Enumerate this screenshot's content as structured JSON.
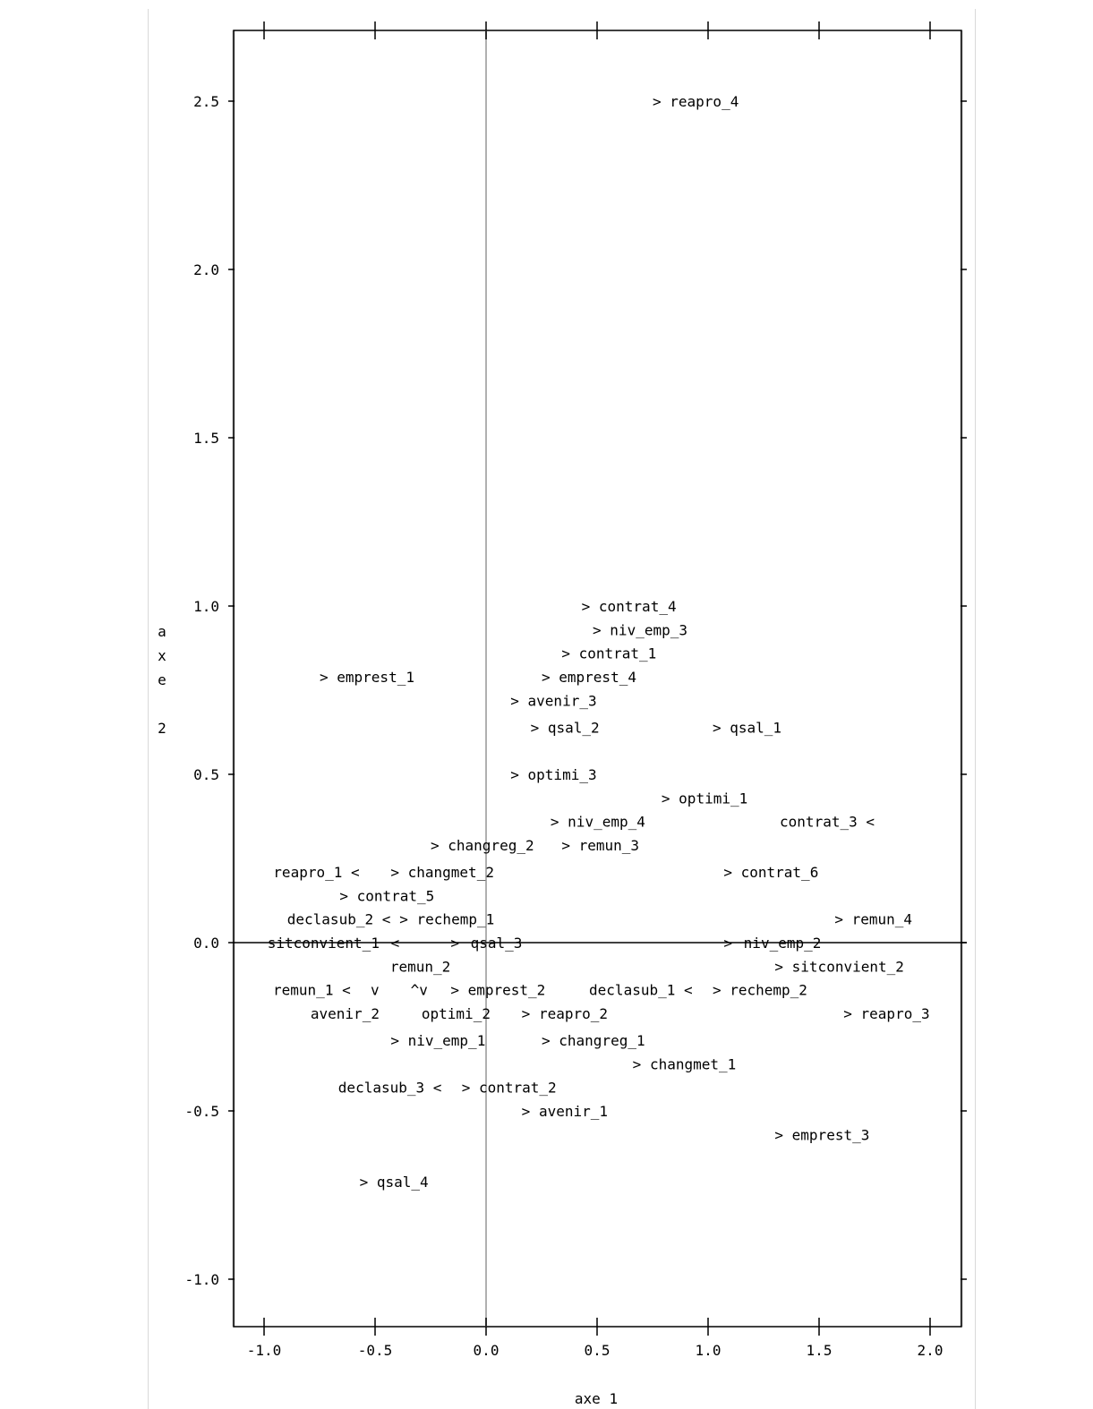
{
  "chart_data": {
    "type": "scatter",
    "xlabel": "axe 1",
    "ylabel": "axe 2",
    "xlim": [
      -1.14,
      2.14
    ],
    "ylim": [
      -1.15,
      2.73
    ],
    "x_ticks": [
      "-1.0",
      "-0.5",
      "0.0",
      "0.5",
      "1.0",
      "1.5",
      "2.0"
    ],
    "y_ticks": [
      "-1.0",
      "-0.5",
      "0.0",
      "0.5",
      "1.0",
      "1.5",
      "2.0",
      "2.5"
    ],
    "grid": false,
    "points": [
      {
        "label": "> reapro_4",
        "x": 0.75,
        "y": 2.5,
        "anchor": "start"
      },
      {
        "label": "> contrat_4",
        "x": 0.43,
        "y": 1.0,
        "anchor": "start"
      },
      {
        "label": "> niv_emp_3",
        "x": 0.48,
        "y": 0.93,
        "anchor": "start"
      },
      {
        "label": "> contrat_1",
        "x": 0.34,
        "y": 0.86,
        "anchor": "start"
      },
      {
        "label": "> emprest_1",
        "x": -0.75,
        "y": 0.79,
        "anchor": "start"
      },
      {
        "label": "> emprest_4",
        "x": 0.25,
        "y": 0.79,
        "anchor": "start"
      },
      {
        "label": "> avenir_3",
        "x": 0.11,
        "y": 0.72,
        "anchor": "start"
      },
      {
        "label": "> qsal_2",
        "x": 0.2,
        "y": 0.64,
        "anchor": "start"
      },
      {
        "label": "> qsal_1",
        "x": 1.02,
        "y": 0.64,
        "anchor": "start"
      },
      {
        "label": "> optimi_3",
        "x": 0.11,
        "y": 0.5,
        "anchor": "start"
      },
      {
        "label": "> optimi_1",
        "x": 0.79,
        "y": 0.43,
        "anchor": "start"
      },
      {
        "label": "> niv_emp_4",
        "x": 0.29,
        "y": 0.36,
        "anchor": "start"
      },
      {
        "label": "contrat_3 <",
        "x": 1.75,
        "y": 0.36,
        "anchor": "end"
      },
      {
        "label": "> changreg_2",
        "x": -0.25,
        "y": 0.29,
        "anchor": "start"
      },
      {
        "label": "> remun_3",
        "x": 0.34,
        "y": 0.29,
        "anchor": "start"
      },
      {
        "label": "reapro_1 <",
        "x": -0.57,
        "y": 0.21,
        "anchor": "end"
      },
      {
        "label": "> changmet_2",
        "x": -0.43,
        "y": 0.21,
        "anchor": "start"
      },
      {
        "label": "> contrat_6",
        "x": 1.07,
        "y": 0.21,
        "anchor": "start"
      },
      {
        "label": "> contrat_5",
        "x": -0.66,
        "y": 0.14,
        "anchor": "start"
      },
      {
        "label": "declasub_2 <",
        "x": -0.43,
        "y": 0.07,
        "anchor": "end"
      },
      {
        "label": "> rechemp_1",
        "x": -0.39,
        "y": 0.07,
        "anchor": "start"
      },
      {
        "label": "> remun_4",
        "x": 1.57,
        "y": 0.07,
        "anchor": "start"
      },
      {
        "label": "sitconvient_1",
        "x": -0.48,
        "y": 0.0,
        "anchor": "end"
      },
      {
        "label": "<",
        "x": -0.39,
        "y": 0.0,
        "anchor": "end"
      },
      {
        "label": ">",
        "x": -0.16,
        "y": 0.0,
        "anchor": "start"
      },
      {
        "label": "qsal_3",
        "x": -0.07,
        "y": 0.0,
        "anchor": "start"
      },
      {
        "label": ">",
        "x": 1.07,
        "y": 0.0,
        "anchor": "start"
      },
      {
        "label": "niv_emp_2",
        "x": 1.16,
        "y": 0.0,
        "anchor": "start"
      },
      {
        "label": "remun_2",
        "x": -0.16,
        "y": -0.07,
        "anchor": "end"
      },
      {
        "label": "> sitconvient_2",
        "x": 1.3,
        "y": -0.07,
        "anchor": "start"
      },
      {
        "label": "remun_1 <",
        "x": -0.61,
        "y": -0.14,
        "anchor": "end"
      },
      {
        "label": "v",
        "x": -0.52,
        "y": -0.14,
        "anchor": "start"
      },
      {
        "label": "^v",
        "x": -0.34,
        "y": -0.14,
        "anchor": "start"
      },
      {
        "label": "> emprest_2",
        "x": -0.16,
        "y": -0.14,
        "anchor": "start"
      },
      {
        "label": "declasub_1 <",
        "x": 0.93,
        "y": -0.14,
        "anchor": "end"
      },
      {
        "label": "> rechemp_2",
        "x": 1.02,
        "y": -0.14,
        "anchor": "start"
      },
      {
        "label": "avenir_2",
        "x": -0.48,
        "y": -0.21,
        "anchor": "end"
      },
      {
        "label": "optimi_2",
        "x": 0.02,
        "y": -0.21,
        "anchor": "end"
      },
      {
        "label": "> reapro_2",
        "x": 0.16,
        "y": -0.21,
        "anchor": "start"
      },
      {
        "label": "> reapro_3",
        "x": 1.61,
        "y": -0.21,
        "anchor": "start"
      },
      {
        "label": "> niv_emp_1",
        "x": -0.43,
        "y": -0.29,
        "anchor": "start"
      },
      {
        "label": "> changreg_1",
        "x": 0.25,
        "y": -0.29,
        "anchor": "start"
      },
      {
        "label": "> changmet_1",
        "x": 0.66,
        "y": -0.36,
        "anchor": "start"
      },
      {
        "label": "declasub_3 <",
        "x": -0.2,
        "y": -0.43,
        "anchor": "end"
      },
      {
        "label": "> contrat_2",
        "x": -0.11,
        "y": -0.43,
        "anchor": "start"
      },
      {
        "label": "> avenir_1",
        "x": 0.16,
        "y": -0.5,
        "anchor": "start"
      },
      {
        "label": "> emprest_3",
        "x": 1.3,
        "y": -0.57,
        "anchor": "start"
      },
      {
        "label": "> qsal_4",
        "x": -0.57,
        "y": -0.71,
        "anchor": "start"
      }
    ]
  }
}
